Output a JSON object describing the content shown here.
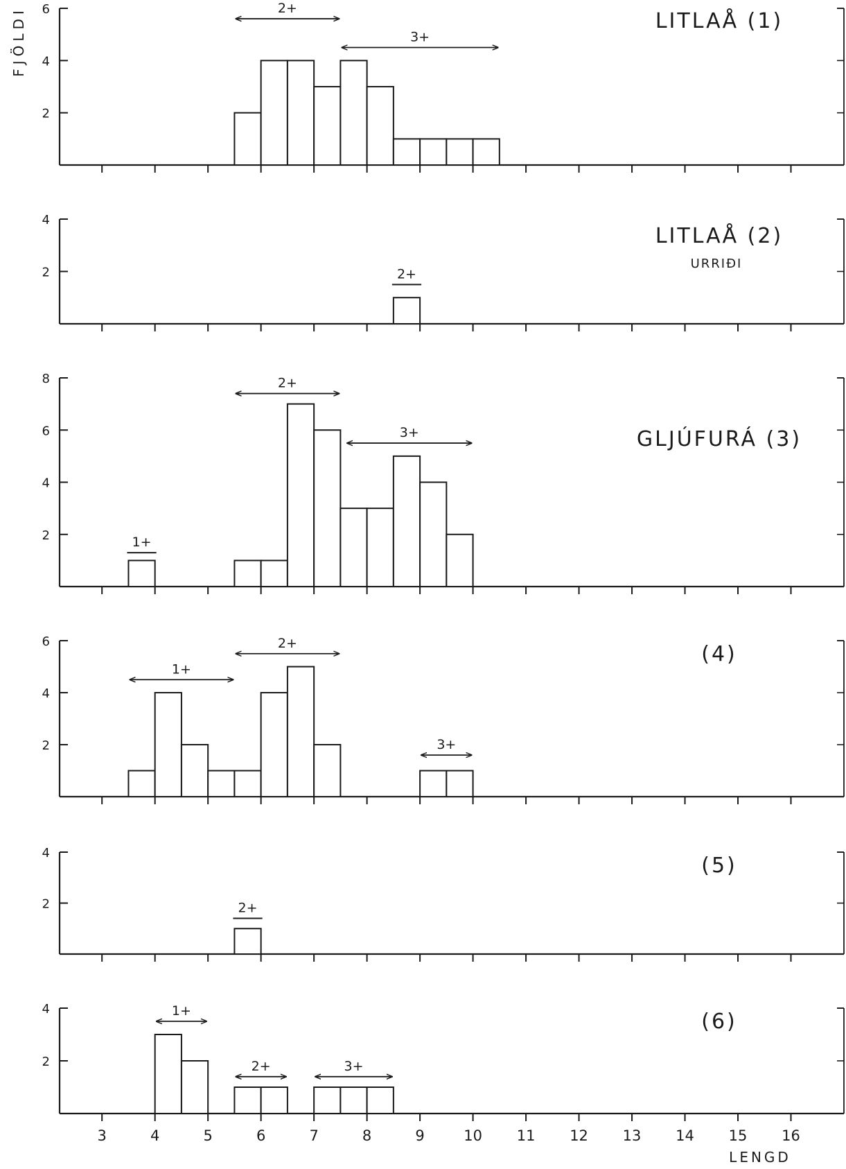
{
  "page": {
    "ylabel": "FJÖLDI",
    "xlabel": "LENGD"
  },
  "chart_data": [
    {
      "type": "bar",
      "title": "LITLAÅ (1)",
      "subtitle": "",
      "ylim": [
        0,
        6
      ],
      "yticks": [
        2,
        4,
        6
      ],
      "xlim": [
        2.2,
        17
      ],
      "xticks": [
        3,
        4,
        5,
        6,
        7,
        8,
        9,
        10,
        11,
        12,
        13,
        14,
        15,
        16
      ],
      "show_xtick_labels": false,
      "bins": [
        {
          "from": 5.5,
          "to": 6.0,
          "value": 2
        },
        {
          "from": 6.0,
          "to": 6.5,
          "value": 4
        },
        {
          "from": 6.5,
          "to": 7.0,
          "value": 4
        },
        {
          "from": 7.0,
          "to": 7.5,
          "value": 3
        },
        {
          "from": 7.5,
          "to": 8.0,
          "value": 4
        },
        {
          "from": 8.0,
          "to": 8.5,
          "value": 3
        },
        {
          "from": 8.5,
          "to": 9.0,
          "value": 1
        },
        {
          "from": 9.0,
          "to": 9.5,
          "value": 1
        },
        {
          "from": 9.5,
          "to": 10.0,
          "value": 1
        },
        {
          "from": 10.0,
          "to": 10.5,
          "value": 1
        }
      ],
      "age_groups": [
        {
          "label": "2+",
          "from": 5.5,
          "to": 7.5,
          "level": 5.6,
          "style": "arrow"
        },
        {
          "label": "3+",
          "from": 7.5,
          "to": 10.5,
          "level": 4.5,
          "style": "arrow"
        }
      ]
    },
    {
      "type": "bar",
      "title": "LITLAÅ (2)",
      "subtitle": "URRIÐI",
      "ylim": [
        0,
        4
      ],
      "yticks": [
        2,
        4
      ],
      "xlim": [
        2.2,
        17
      ],
      "xticks": [
        3,
        4,
        5,
        6,
        7,
        8,
        9,
        10,
        11,
        12,
        13,
        14,
        15,
        16
      ],
      "show_xtick_labels": false,
      "bins": [
        {
          "from": 8.5,
          "to": 9.0,
          "value": 1
        }
      ],
      "age_groups": [
        {
          "label": "2+",
          "from": 8.5,
          "to": 9.0,
          "level": 1.5,
          "style": "bar"
        }
      ]
    },
    {
      "type": "bar",
      "title": "GLJÚFURÁ (3)",
      "subtitle": "",
      "ylim": [
        0,
        8
      ],
      "yticks": [
        2,
        4,
        6,
        8
      ],
      "xlim": [
        2.2,
        17
      ],
      "xticks": [
        3,
        4,
        5,
        6,
        7,
        8,
        9,
        10,
        11,
        12,
        13,
        14,
        15,
        16
      ],
      "show_xtick_labels": false,
      "bins": [
        {
          "from": 3.5,
          "to": 4.0,
          "value": 1
        },
        {
          "from": 5.5,
          "to": 6.0,
          "value": 1
        },
        {
          "from": 6.0,
          "to": 6.5,
          "value": 1
        },
        {
          "from": 6.5,
          "to": 7.0,
          "value": 7
        },
        {
          "from": 7.0,
          "to": 7.5,
          "value": 6
        },
        {
          "from": 7.5,
          "to": 8.0,
          "value": 3
        },
        {
          "from": 8.0,
          "to": 8.5,
          "value": 3
        },
        {
          "from": 8.5,
          "to": 9.0,
          "value": 5
        },
        {
          "from": 9.0,
          "to": 9.5,
          "value": 4
        },
        {
          "from": 9.5,
          "to": 10.0,
          "value": 2
        }
      ],
      "age_groups": [
        {
          "label": "1+",
          "from": 3.5,
          "to": 4.0,
          "level": 1.3,
          "style": "bar"
        },
        {
          "label": "2+",
          "from": 5.5,
          "to": 7.5,
          "level": 7.4,
          "style": "arrow"
        },
        {
          "label": "3+",
          "from": 7.6,
          "to": 10.0,
          "level": 5.5,
          "style": "arrow"
        }
      ]
    },
    {
      "type": "bar",
      "title": "(4)",
      "subtitle": "",
      "ylim": [
        0,
        6
      ],
      "yticks": [
        2,
        4,
        6
      ],
      "xlim": [
        2.2,
        17
      ],
      "xticks": [
        3,
        4,
        5,
        6,
        7,
        8,
        9,
        10,
        11,
        12,
        13,
        14,
        15,
        16
      ],
      "show_xtick_labels": false,
      "bins": [
        {
          "from": 3.5,
          "to": 4.0,
          "value": 1
        },
        {
          "from": 4.0,
          "to": 4.5,
          "value": 4
        },
        {
          "from": 4.5,
          "to": 5.0,
          "value": 2
        },
        {
          "from": 5.0,
          "to": 5.5,
          "value": 1
        },
        {
          "from": 5.5,
          "to": 6.0,
          "value": 1
        },
        {
          "from": 6.0,
          "to": 6.5,
          "value": 4
        },
        {
          "from": 6.5,
          "to": 7.0,
          "value": 5
        },
        {
          "from": 7.0,
          "to": 7.5,
          "value": 2
        },
        {
          "from": 9.0,
          "to": 9.5,
          "value": 1
        },
        {
          "from": 9.5,
          "to": 10.0,
          "value": 1
        }
      ],
      "age_groups": [
        {
          "label": "1+",
          "from": 3.5,
          "to": 5.5,
          "level": 4.5,
          "style": "arrow"
        },
        {
          "label": "2+",
          "from": 5.5,
          "to": 7.5,
          "level": 5.5,
          "style": "arrow"
        },
        {
          "label": "3+",
          "from": 9.0,
          "to": 10.0,
          "level": 1.6,
          "style": "arrow"
        }
      ]
    },
    {
      "type": "bar",
      "title": "(5)",
      "subtitle": "",
      "ylim": [
        0,
        4
      ],
      "yticks": [
        2,
        4
      ],
      "xlim": [
        2.2,
        17
      ],
      "xticks": [
        3,
        4,
        5,
        6,
        7,
        8,
        9,
        10,
        11,
        12,
        13,
        14,
        15,
        16
      ],
      "show_xtick_labels": false,
      "bins": [
        {
          "from": 5.5,
          "to": 6.0,
          "value": 1
        }
      ],
      "age_groups": [
        {
          "label": "2+",
          "from": 5.5,
          "to": 6.0,
          "level": 1.4,
          "style": "bar"
        }
      ]
    },
    {
      "type": "bar",
      "title": "(6)",
      "subtitle": "",
      "ylim": [
        0,
        4
      ],
      "yticks": [
        2,
        4
      ],
      "xlim": [
        2.2,
        17
      ],
      "xticks": [
        3,
        4,
        5,
        6,
        7,
        8,
        9,
        10,
        11,
        12,
        13,
        14,
        15,
        16
      ],
      "xtick_labels": [
        "3",
        "4",
        "5",
        "6",
        "7",
        "8",
        "9",
        "10",
        "11",
        "12",
        "13",
        "14",
        "15",
        "16"
      ],
      "show_xtick_labels": true,
      "bins": [
        {
          "from": 4.0,
          "to": 4.5,
          "value": 3
        },
        {
          "from": 4.5,
          "to": 5.0,
          "value": 2
        },
        {
          "from": 5.5,
          "to": 6.0,
          "value": 1
        },
        {
          "from": 6.0,
          "to": 6.5,
          "value": 1
        },
        {
          "from": 7.0,
          "to": 7.5,
          "value": 1
        },
        {
          "from": 7.5,
          "to": 8.0,
          "value": 1
        },
        {
          "from": 8.0,
          "to": 8.5,
          "value": 1
        }
      ],
      "age_groups": [
        {
          "label": "1+",
          "from": 4.0,
          "to": 5.0,
          "level": 3.5,
          "style": "arrow"
        },
        {
          "label": "2+",
          "from": 5.5,
          "to": 6.5,
          "level": 1.4,
          "style": "arrow"
        },
        {
          "label": "3+",
          "from": 7.0,
          "to": 8.5,
          "level": 1.4,
          "style": "arrow"
        }
      ]
    }
  ]
}
